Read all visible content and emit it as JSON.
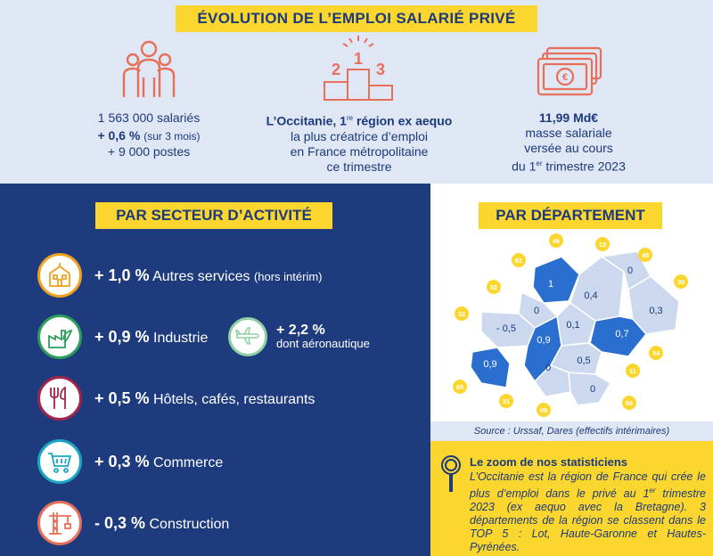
{
  "header": {
    "title": "ÉVOLUTION DE L’EMPLOI SALARIÉ PRIVÉ"
  },
  "stats": {
    "employees": {
      "line1": "1 563 000 salariés",
      "line2_bold": "+ 0,6 %",
      "line2_small": "(sur 3 mois)",
      "line3": "+ 9 000 postes"
    },
    "ranking": {
      "podium_1": "1",
      "podium_2": "2",
      "podium_3": "3",
      "line1_bold_a": "L’Occitanie, 1",
      "line1_sup": "re",
      "line1_bold_b": " région ex aequo",
      "line2": "la plus créatrice d’emploi",
      "line3": "en France métropolitaine",
      "line4": "ce trimestre"
    },
    "payroll": {
      "line1_bold": "11,99 Md€",
      "line2": "masse salariale",
      "line3": "versée au cours",
      "line4_a": "du 1",
      "line4_sup": "er",
      "line4_b": " trimestre 2023"
    }
  },
  "sectors": {
    "title": "PAR SECTEUR D’ACTIVITÉ",
    "items": [
      {
        "value": "+ 1,0 %",
        "label": "Autres services",
        "note": "(hors intérim)",
        "icon": "building-icon",
        "color": "#f0a21f"
      },
      {
        "value": "+ 0,9 %",
        "label": "Industrie",
        "note": "",
        "icon": "factory-icon",
        "color": "#2e9e5a"
      },
      {
        "value": "+ 0,5 %",
        "label": "Hôtels, cafés, restaurants",
        "note": "",
        "icon": "cutlery-icon",
        "color": "#a3244b"
      },
      {
        "value": "+ 0,3 %",
        "label": "Commerce",
        "note": "",
        "icon": "cart-icon",
        "color": "#1aa7c3"
      },
      {
        "value": "- 0,3 %",
        "label": "Construction",
        "note": "",
        "icon": "crane-icon",
        "color": "#e8705a"
      }
    ],
    "aero": {
      "value": "+ 2,2 %",
      "label": "dont aéronautique",
      "color": "#8fd0a5"
    }
  },
  "departments": {
    "title": "PAR DÉPARTEMENT",
    "codes": [
      "46",
      "12",
      "48",
      "81",
      "30",
      "82",
      "32",
      "34",
      "11",
      "65",
      "31",
      "66",
      "09"
    ],
    "values": [
      "1",
      "0,4",
      "0",
      "0",
      "0,3",
      "- 0,5",
      "0,1",
      "0,7",
      "0,9",
      "0,9",
      "0,5",
      "0",
      "0"
    ],
    "source": "Source : Urssaf, Dares (effectifs intérimaires)"
  },
  "zoom": {
    "title": "Le zoom de nos statisticiens",
    "text_a": "L’Occitanie est la région de France qui crée le plus d’emploi dans le privé au 1",
    "text_sup": "er",
    "text_b": " trimestre 2023 (ex aequo avec la Bretagne). 3 départements de la région se classent dans le TOP 5 : Lot, Haute-Garonne et Hautes-Pyrénées."
  }
}
